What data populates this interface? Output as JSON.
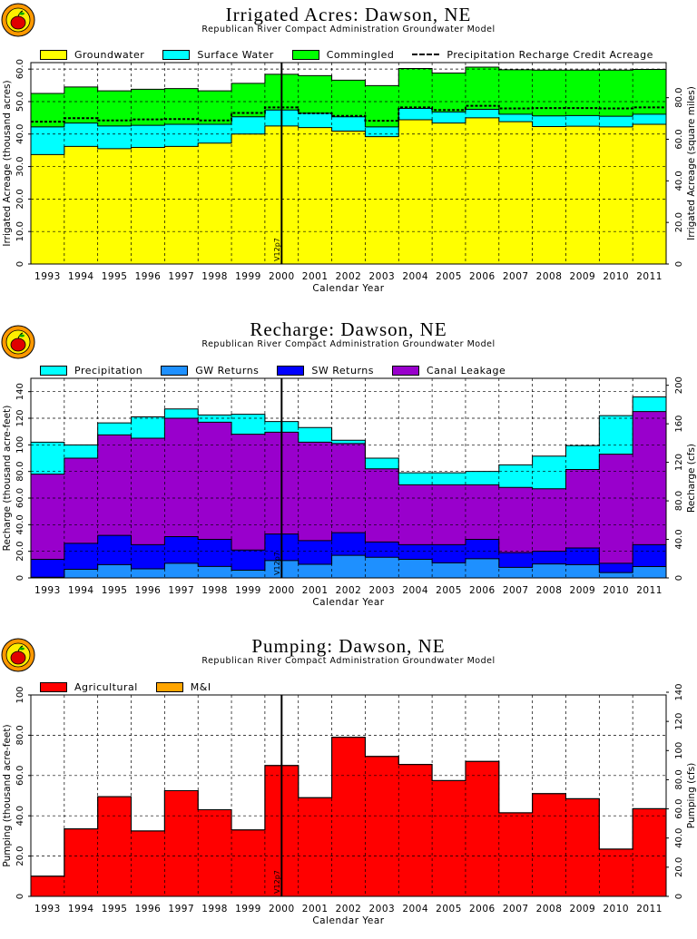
{
  "chart_data": [
    {
      "type": "area",
      "stacked": true,
      "title": "Irrigated Acres: Dawson, NE",
      "subtitle": "Republican River Compact Administration Groundwater Model",
      "xlabel": "Calendar Year",
      "ylabel": "Irrigated Acreage (thousand acres)",
      "y2label": "Irrigated Acreage (square miles)",
      "ylim": [
        0,
        62
      ],
      "yticks": [
        0,
        10.0,
        20.0,
        30.0,
        40.0,
        50.0,
        60.0
      ],
      "ytick_labels": [
        "0",
        "10.0",
        "20.0",
        "30.0",
        "40.0",
        "50.0",
        "60.0"
      ],
      "y2_factor": 1.5625,
      "y2ticks": [
        0,
        20.0,
        40.0,
        60.0,
        80.0
      ],
      "y2tick_labels": [
        "0",
        "20.0",
        "40.0",
        "60.0",
        "80.0"
      ],
      "categories": [
        "1993",
        "1994",
        "1995",
        "1996",
        "1997",
        "1998",
        "1999",
        "2000",
        "2001",
        "2002",
        "2003",
        "2004",
        "2005",
        "2006",
        "2007",
        "2008",
        "2009",
        "2010",
        "2011"
      ],
      "series": [
        {
          "name": "Groundwater",
          "color": "#ffff00",
          "values": [
            33.7,
            36.2,
            35.5,
            35.9,
            36.2,
            37.2,
            40.0,
            42.5,
            42.0,
            40.9,
            39.2,
            44.4,
            43.4,
            45.0,
            43.8,
            42.3,
            42.4,
            42.2,
            43.0
          ]
        },
        {
          "name": "Surface Water",
          "color": "#00ffff",
          "values": [
            8.5,
            7.2,
            7.0,
            6.8,
            6.8,
            5.8,
            5.3,
            4.9,
            4.4,
            4.4,
            3.0,
            3.5,
            3.4,
            2.6,
            2.3,
            3.3,
            3.3,
            3.3,
            3.1
          ]
        },
        {
          "name": "Commingled",
          "color": "#00ff00",
          "values": [
            10.3,
            11.1,
            10.8,
            11.1,
            11.0,
            10.3,
            10.3,
            11.0,
            11.6,
            11.3,
            12.7,
            12.3,
            12.0,
            13.0,
            13.7,
            14.1,
            14.0,
            14.2,
            13.8
          ]
        }
      ],
      "lines": [
        {
          "name": "Precipitation Recharge Credit Acreage",
          "style": "dashed",
          "color": "#000000",
          "values": [
            43.8,
            44.9,
            44.2,
            44.5,
            44.6,
            44.2,
            46.5,
            48.2,
            46.4,
            45.6,
            44.1,
            48.2,
            47.4,
            48.7,
            47.9,
            48.0,
            48.0,
            47.9,
            48.2
          ]
        }
      ],
      "marker": {
        "label": "V12p7",
        "x_year": 2000.5
      },
      "legend": "top"
    },
    {
      "type": "area",
      "stacked": true,
      "title": "Recharge: Dawson, NE",
      "subtitle": "Republican River Compact Administration Groundwater Model",
      "xlabel": "Calendar Year",
      "ylabel": "Recharge (thousand acre-feet)",
      "y2label": "Recharge (cfs)",
      "ylim": [
        0,
        150
      ],
      "yticks": [
        0,
        20.0,
        40.0,
        60.0,
        80.0,
        100,
        120,
        140
      ],
      "ytick_labels": [
        "0",
        "20.0",
        "40.0",
        "60.0",
        "80.0",
        "100",
        "120",
        "140"
      ],
      "y2_factor": 1.3814,
      "y2ticks": [
        0,
        40.0,
        80.0,
        120,
        160,
        200
      ],
      "y2tick_labels": [
        "0",
        "40.0",
        "80.0",
        "120",
        "160",
        "200"
      ],
      "categories": [
        "1993",
        "1994",
        "1995",
        "1996",
        "1997",
        "1998",
        "1999",
        "2000",
        "2001",
        "2002",
        "2003",
        "2004",
        "2005",
        "2006",
        "2007",
        "2008",
        "2009",
        "2010",
        "2011"
      ],
      "series": [
        {
          "name": "GW Returns",
          "color": "#1e90ff",
          "values": [
            0.5,
            6.5,
            10.0,
            6.8,
            11.0,
            8.6,
            5.8,
            13.0,
            10.2,
            17.0,
            15.5,
            14.0,
            11.3,
            14.4,
            7.9,
            10.5,
            10.0,
            4.0,
            8.5
          ]
        },
        {
          "name": "SW Returns",
          "color": "#0000ff",
          "values": [
            13.5,
            19.5,
            22.0,
            18.2,
            20.0,
            20.4,
            15.2,
            20.0,
            17.8,
            17.0,
            11.5,
            11.0,
            13.7,
            14.6,
            11.1,
            9.5,
            12.5,
            7.0,
            16.5
          ]
        },
        {
          "name": "Canal Leakage",
          "color": "#9900cc",
          "values": [
            64.0,
            64.0,
            75.5,
            80.0,
            89.0,
            88.0,
            87.0,
            76.5,
            74.0,
            67.0,
            55.0,
            45.0,
            45.0,
            41.0,
            49.0,
            47.0,
            59.0,
            82.0,
            100.0
          ]
        },
        {
          "name": "Precipitation",
          "color": "#00ffff",
          "values": [
            24.0,
            10.0,
            9.0,
            16.0,
            7.0,
            5.5,
            15.0,
            8.0,
            11.0,
            2.5,
            8.0,
            9.0,
            9.0,
            10.0,
            17.0,
            24.5,
            18.0,
            29.0,
            11.0
          ]
        }
      ],
      "marker": {
        "label": "V12p7",
        "x_year": 2000.5
      },
      "legend": "top"
    },
    {
      "type": "area",
      "stacked": true,
      "title": "Pumping: Dawson, NE",
      "subtitle": "Republican River Compact Administration Groundwater Model",
      "xlabel": "Calendar Year",
      "ylabel": "Pumping (thousand acre-feet)",
      "y2label": "Pumping (cfs)",
      "ylim": [
        0,
        100
      ],
      "yticks": [
        0,
        20.0,
        40.0,
        60.0,
        80.0,
        100
      ],
      "ytick_labels": [
        "0",
        "20.0",
        "40.0",
        "60.0",
        "80.0",
        "100"
      ],
      "y2_factor": 1.3814,
      "y2ticks": [
        0,
        20.0,
        40.0,
        60.0,
        80.0,
        100,
        120,
        140
      ],
      "y2tick_labels": [
        "0",
        "20.0",
        "40.0",
        "60.0",
        "80.0",
        "100",
        "120",
        "140"
      ],
      "categories": [
        "1993",
        "1994",
        "1995",
        "1996",
        "1997",
        "1998",
        "1999",
        "2000",
        "2001",
        "2002",
        "2003",
        "2004",
        "2005",
        "2006",
        "2007",
        "2008",
        "2009",
        "2010",
        "2011"
      ],
      "series": [
        {
          "name": "Agricultural",
          "color": "#ff0000",
          "values": [
            10.0,
            33.5,
            49.5,
            32.5,
            52.5,
            43.0,
            33.0,
            65.0,
            49.0,
            79.0,
            69.5,
            65.5,
            57.5,
            67.0,
            41.5,
            51.0,
            48.5,
            23.5,
            43.5
          ]
        },
        {
          "name": "M&I",
          "color": "#ffa500",
          "values": [
            0,
            0,
            0,
            0,
            0,
            0,
            0,
            0,
            0,
            0,
            0,
            0,
            0,
            0,
            0,
            0,
            0,
            0,
            0
          ]
        }
      ],
      "marker": {
        "label": "V12p7",
        "x_year": 2000.5
      },
      "legend": "top"
    }
  ]
}
